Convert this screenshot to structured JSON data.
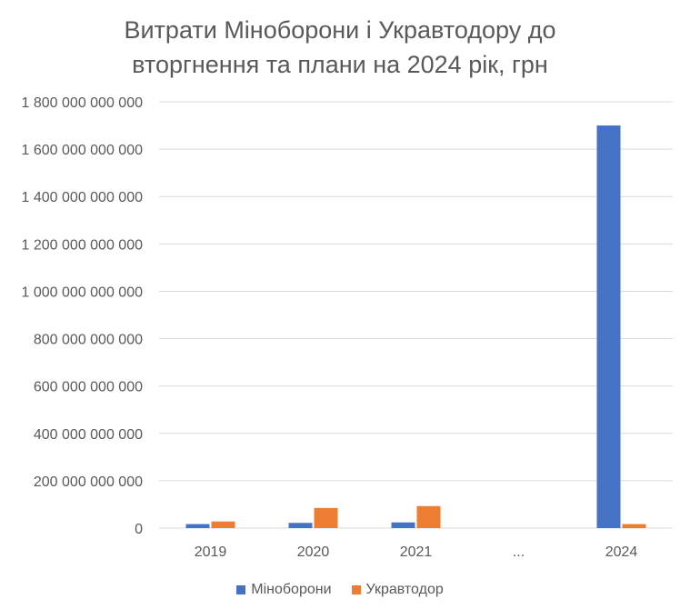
{
  "chart_data": {
    "type": "bar",
    "title_lines": [
      "Витрати Міноборони і Укравтодору до",
      "вторгнення та плани на 2024 рік, грн"
    ],
    "categories": [
      "2019",
      "2020",
      "2021",
      "...",
      "2024"
    ],
    "series": [
      {
        "name": "Міноборони",
        "color": "#4472c4",
        "values": [
          17000000000,
          22000000000,
          24000000000,
          null,
          1700000000000
        ]
      },
      {
        "name": "Укравтодор",
        "color": "#ed7d31",
        "values": [
          28000000000,
          85000000000,
          93000000000,
          null,
          17000000000
        ]
      }
    ],
    "ylim": [
      0,
      1800000000000
    ],
    "yticks": [
      0,
      200000000000,
      400000000000,
      600000000000,
      800000000000,
      1000000000000,
      1200000000000,
      1400000000000,
      1600000000000,
      1800000000000
    ],
    "ytick_labels": [
      "0",
      "200 000 000 000",
      "400 000 000 000",
      "600 000 000 000",
      "800 000 000 000",
      "1 000 000 000 000",
      "1 200 000 000 000",
      "1 400 000 000 000",
      "1 600 000 000 000",
      "1 800 000 000 000"
    ],
    "grid": true,
    "legend_position": "bottom"
  }
}
